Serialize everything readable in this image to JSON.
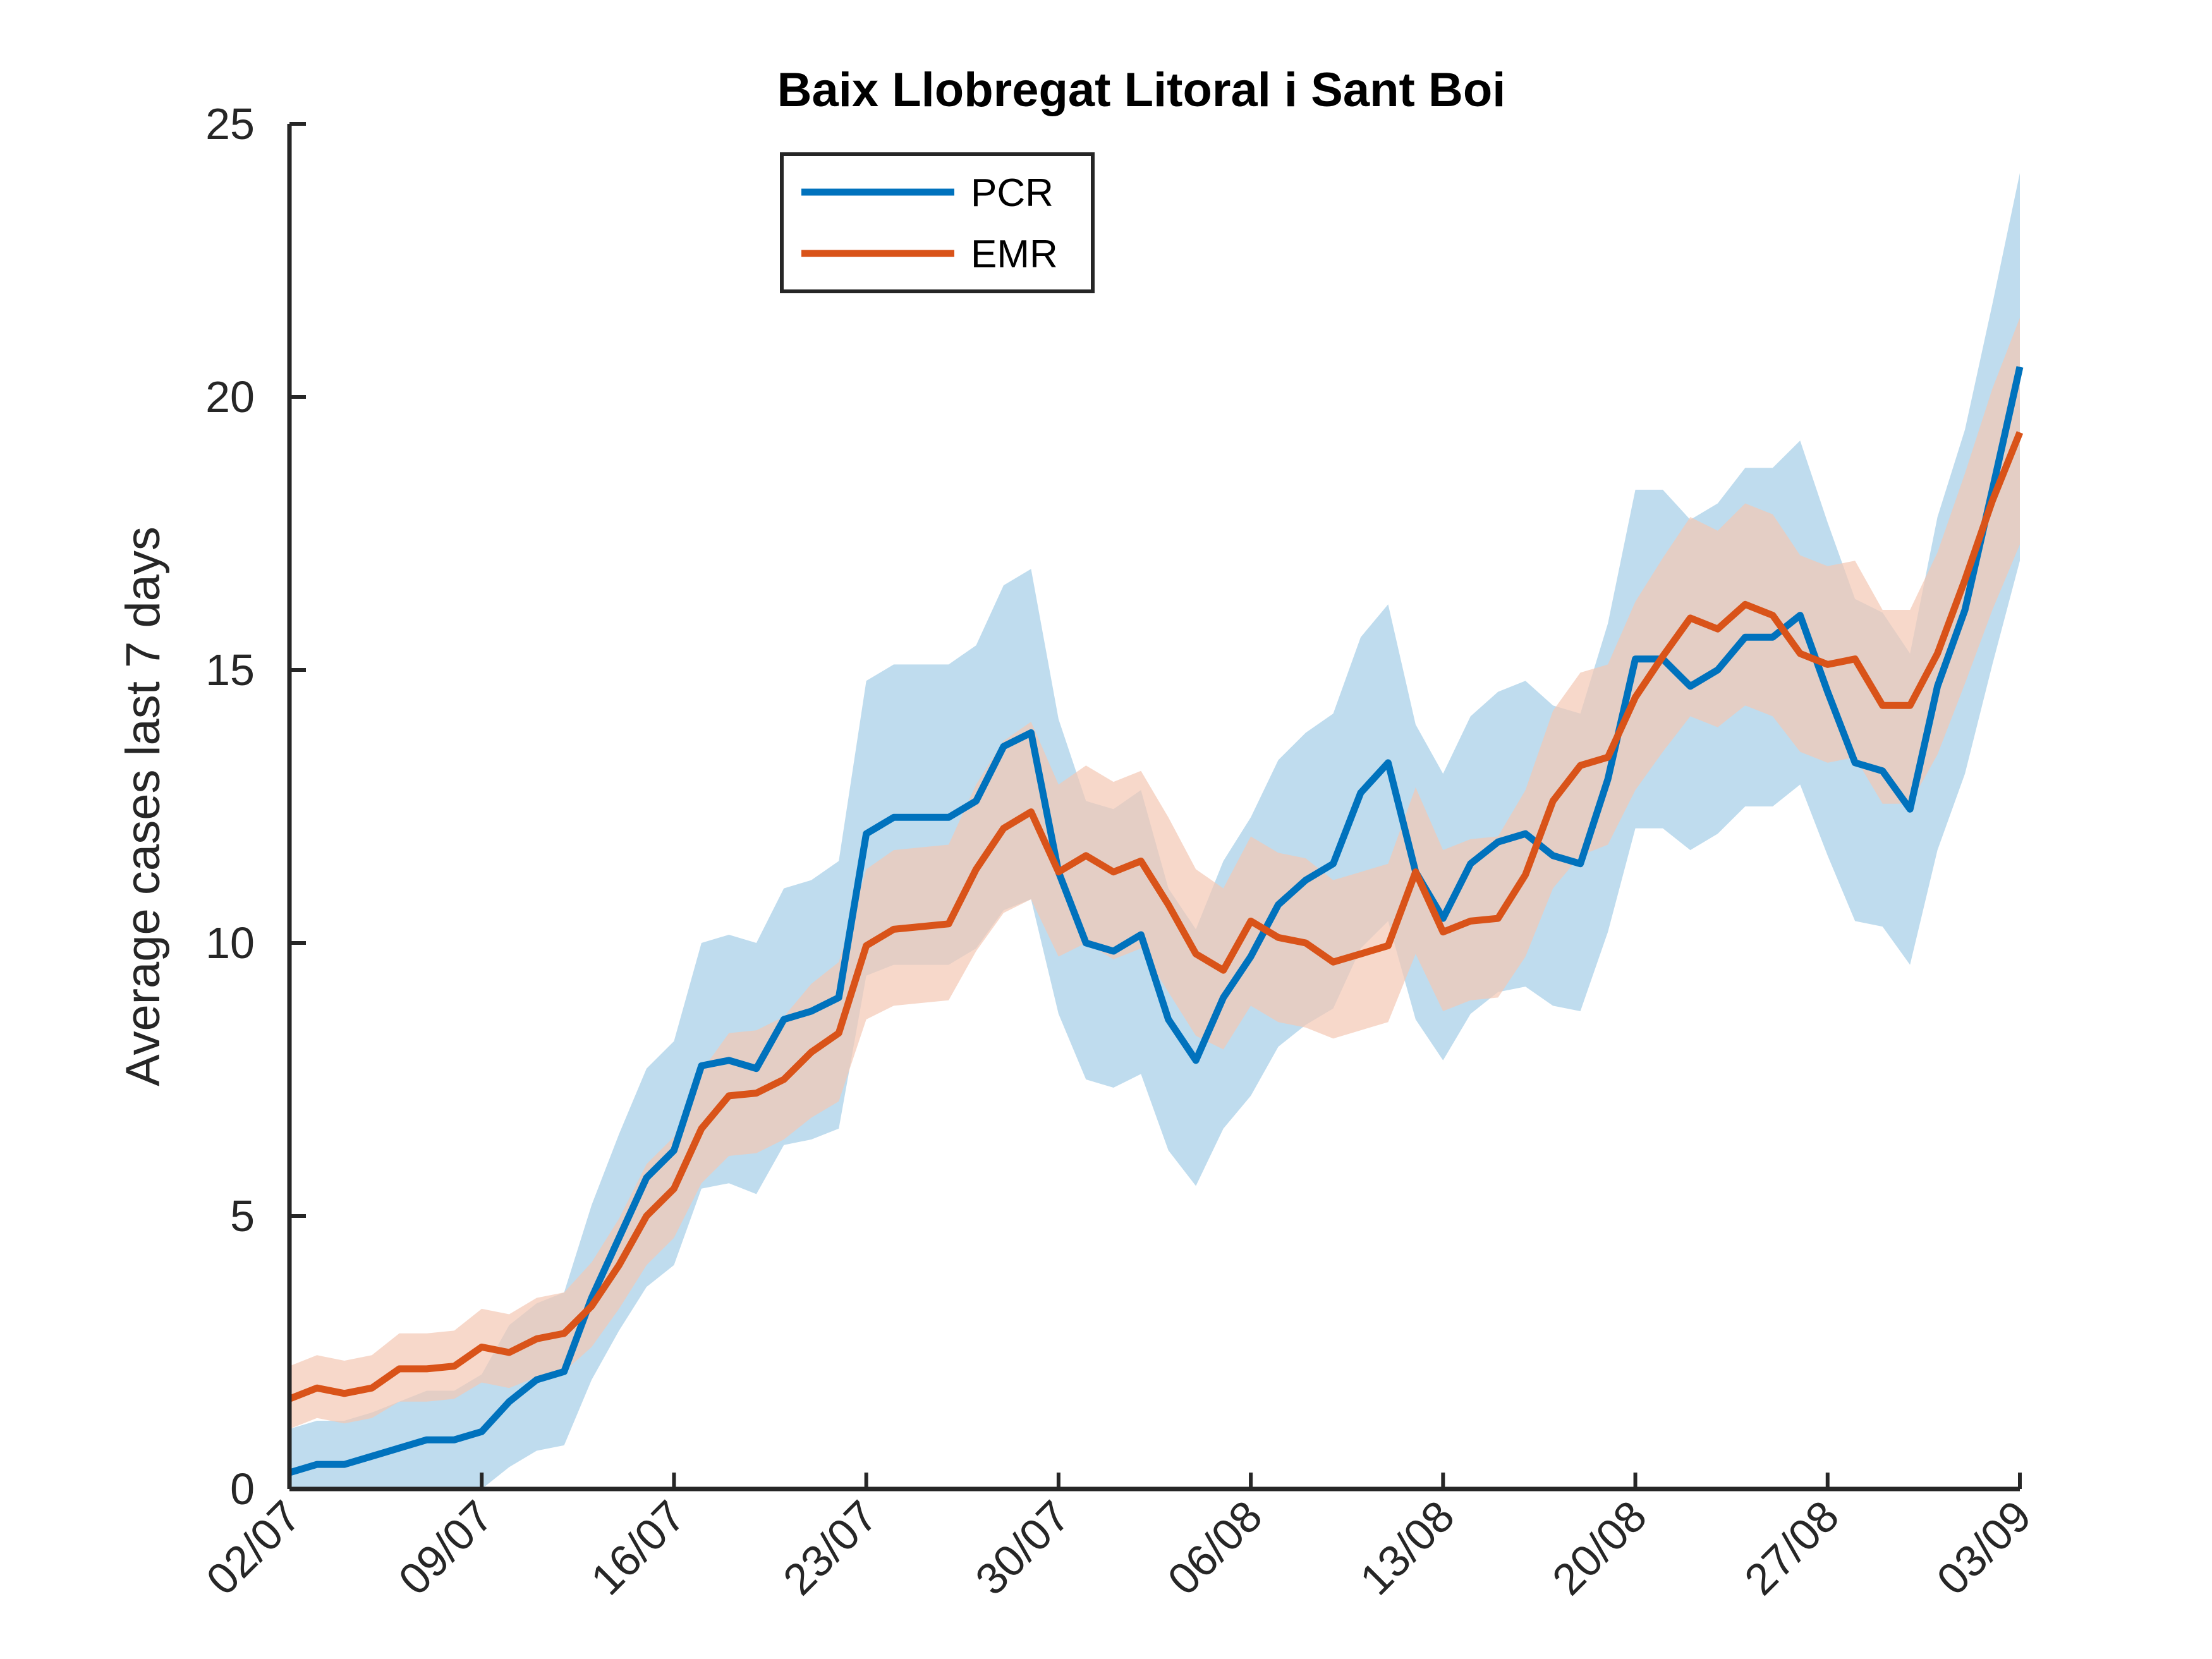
{
  "chart_data": {
    "type": "line",
    "title": "Baix Llobregat Litoral i Sant Boi",
    "xlabel": "",
    "ylabel": "Average cases last 7 days",
    "ylim": [
      0,
      25
    ],
    "yticks": [
      0,
      5,
      10,
      15,
      20,
      25
    ],
    "xticks": [
      "02/07",
      "09/07",
      "16/07",
      "23/07",
      "30/07",
      "06/08",
      "13/08",
      "20/08",
      "27/08",
      "03/09"
    ],
    "legend_position": "top-left",
    "grid": false,
    "x": [
      "02/07",
      "03/07",
      "04/07",
      "05/07",
      "06/07",
      "07/07",
      "08/07",
      "09/07",
      "10/07",
      "11/07",
      "12/07",
      "13/07",
      "14/07",
      "15/07",
      "16/07",
      "17/07",
      "18/07",
      "19/07",
      "20/07",
      "21/07",
      "22/07",
      "23/07",
      "24/07",
      "25/07",
      "26/07",
      "27/07",
      "28/07",
      "29/07",
      "30/07",
      "31/07",
      "01/08",
      "02/08",
      "03/08",
      "04/08",
      "05/08",
      "06/08",
      "07/08",
      "08/08",
      "09/08",
      "10/08",
      "11/08",
      "12/08",
      "13/08",
      "14/08",
      "15/08",
      "16/08",
      "17/08",
      "18/08",
      "19/08",
      "20/08",
      "21/08",
      "22/08",
      "23/08",
      "24/08",
      "25/08",
      "26/08",
      "27/08",
      "28/08",
      "29/08",
      "30/08",
      "31/08",
      "01/09",
      "02/09",
      "03/09"
    ],
    "series": [
      {
        "name": "PCR",
        "color": "#0072BD",
        "band_color": "#bfdcee",
        "values": [
          0.3,
          0.45,
          0.45,
          0.6,
          0.75,
          0.9,
          0.9,
          1.05,
          1.6,
          2.0,
          2.15,
          3.5,
          4.6,
          5.7,
          6.2,
          7.75,
          7.85,
          7.7,
          8.6,
          8.75,
          9.0,
          12.0,
          12.3,
          12.3,
          12.3,
          12.6,
          13.6,
          13.85,
          11.3,
          10.0,
          9.85,
          10.15,
          8.6,
          7.85,
          9.0,
          9.75,
          10.7,
          11.15,
          11.45,
          12.75,
          13.3,
          11.3,
          10.45,
          11.45,
          11.85,
          12.0,
          11.6,
          11.45,
          13.0,
          15.2,
          15.2,
          14.7,
          15.0,
          15.6,
          15.6,
          16.0,
          14.6,
          13.3,
          13.15,
          12.45,
          14.7,
          16.1,
          18.3,
          20.55
        ],
        "lower": [
          0.0,
          0.0,
          0.0,
          0.0,
          0.0,
          0.0,
          0.0,
          0.0,
          0.4,
          0.7,
          0.8,
          2.0,
          2.9,
          3.7,
          4.1,
          5.5,
          5.6,
          5.4,
          6.3,
          6.4,
          6.6,
          9.4,
          9.6,
          9.6,
          9.6,
          9.9,
          10.6,
          10.8,
          8.7,
          7.5,
          7.35,
          7.6,
          6.2,
          5.55,
          6.6,
          7.2,
          8.1,
          8.5,
          8.8,
          9.9,
          10.4,
          8.6,
          7.85,
          8.7,
          9.1,
          9.2,
          8.85,
          8.75,
          10.2,
          12.1,
          12.1,
          11.7,
          12.0,
          12.5,
          12.5,
          12.9,
          11.6,
          10.4,
          10.3,
          9.6,
          11.7,
          13.1,
          15.1,
          17.0
        ],
        "upper": [
          1.1,
          1.25,
          1.25,
          1.4,
          1.6,
          1.8,
          1.8,
          2.1,
          3.0,
          3.4,
          3.6,
          5.2,
          6.5,
          7.7,
          8.2,
          10.0,
          10.15,
          10.0,
          11.0,
          11.15,
          11.5,
          14.8,
          15.1,
          15.1,
          15.1,
          15.45,
          16.55,
          16.85,
          14.1,
          12.6,
          12.45,
          12.8,
          11.0,
          10.25,
          11.5,
          12.3,
          13.35,
          13.85,
          14.2,
          15.6,
          16.2,
          14.0,
          13.1,
          14.15,
          14.6,
          14.8,
          14.35,
          14.2,
          15.85,
          18.3,
          18.3,
          17.75,
          18.05,
          18.7,
          18.7,
          19.2,
          17.7,
          16.3,
          16.05,
          15.3,
          17.8,
          19.4,
          21.7,
          24.1
        ]
      },
      {
        "name": "EMR",
        "color": "#D95319",
        "band_color": "#f4c8b4",
        "values": [
          1.65,
          1.85,
          1.75,
          1.85,
          2.2,
          2.2,
          2.25,
          2.6,
          2.5,
          2.75,
          2.85,
          3.35,
          4.1,
          5.0,
          5.5,
          6.6,
          7.2,
          7.25,
          7.5,
          8.0,
          8.35,
          9.95,
          10.25,
          10.3,
          10.35,
          11.35,
          12.1,
          12.4,
          11.3,
          11.6,
          11.3,
          11.5,
          10.7,
          9.8,
          9.5,
          10.4,
          10.1,
          10.0,
          9.65,
          9.8,
          9.95,
          11.3,
          10.2,
          10.4,
          10.45,
          11.25,
          12.6,
          13.25,
          13.4,
          14.5,
          15.25,
          15.95,
          15.75,
          16.2,
          16.0,
          15.3,
          15.1,
          15.2,
          14.35,
          14.35,
          15.3,
          16.65,
          18.1,
          19.35
        ],
        "lower": [
          1.1,
          1.3,
          1.2,
          1.3,
          1.6,
          1.6,
          1.65,
          1.95,
          1.85,
          2.05,
          2.15,
          2.6,
          3.3,
          4.1,
          4.6,
          5.6,
          6.1,
          6.15,
          6.4,
          6.8,
          7.1,
          8.6,
          8.85,
          8.9,
          8.95,
          9.85,
          10.55,
          10.8,
          9.75,
          10.0,
          9.7,
          9.9,
          9.1,
          8.3,
          8.05,
          8.85,
          8.55,
          8.45,
          8.25,
          8.4,
          8.55,
          9.8,
          8.75,
          8.95,
          9.0,
          9.75,
          11.0,
          11.6,
          11.8,
          12.8,
          13.5,
          14.15,
          13.95,
          14.35,
          14.15,
          13.5,
          13.3,
          13.4,
          12.55,
          12.55,
          13.45,
          14.75,
          16.1,
          17.3
        ],
        "upper": [
          2.25,
          2.45,
          2.35,
          2.45,
          2.85,
          2.85,
          2.9,
          3.3,
          3.2,
          3.5,
          3.6,
          4.15,
          4.95,
          5.95,
          6.45,
          7.65,
          8.35,
          8.4,
          8.65,
          9.25,
          9.65,
          11.35,
          11.7,
          11.75,
          11.8,
          12.9,
          13.7,
          14.05,
          12.9,
          13.25,
          12.95,
          13.15,
          12.3,
          11.35,
          11.0,
          11.95,
          11.65,
          11.55,
          11.15,
          11.3,
          11.45,
          12.85,
          11.7,
          11.9,
          11.95,
          12.8,
          14.25,
          14.95,
          15.1,
          16.25,
          17.05,
          17.8,
          17.55,
          18.05,
          17.85,
          17.1,
          16.9,
          17.0,
          16.1,
          16.1,
          17.15,
          18.6,
          20.15,
          21.45
        ]
      }
    ]
  }
}
